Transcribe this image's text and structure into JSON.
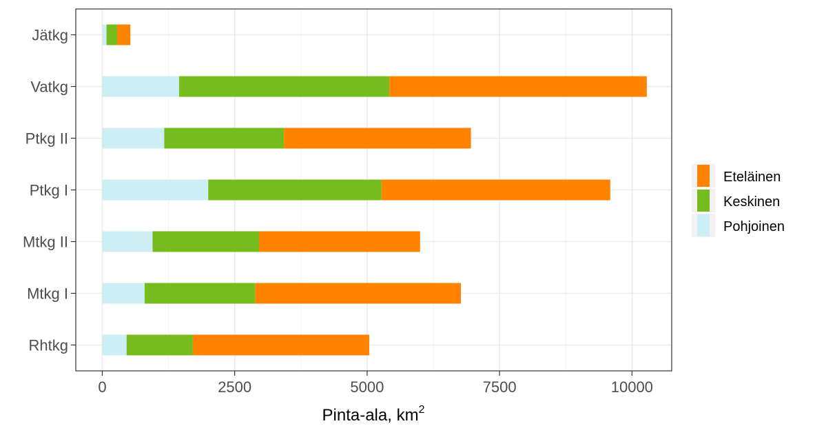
{
  "chart_data": {
    "type": "bar",
    "orientation": "horizontal",
    "stacked": true,
    "categories": [
      "Rhtkg",
      "Mtkg I",
      "Mtkg II",
      "Ptkg I",
      "Ptkg II",
      "Vatkg",
      "Jätkg"
    ],
    "series": [
      {
        "name": "Pohjoinen",
        "color": "#cdeef5",
        "values": [
          460,
          800,
          950,
          2000,
          1170,
          1450,
          80
        ]
      },
      {
        "name": "Keskinen",
        "color": "#77bc1f",
        "values": [
          1250,
          2090,
          2010,
          3270,
          2260,
          3970,
          200
        ]
      },
      {
        "name": "Eteläinen",
        "color": "#ff8200",
        "values": [
          3330,
          3880,
          3040,
          4320,
          3530,
          4860,
          250
        ]
      }
    ],
    "legend_order": [
      "Eteläinen",
      "Keskinen",
      "Pohjoinen"
    ],
    "xticks": [
      0,
      2500,
      5000,
      7500,
      10000
    ],
    "xtick_labels": [
      "0",
      "2500",
      "5000",
      "7500",
      "10000"
    ],
    "xlim": [
      -500,
      10750
    ],
    "xlabel": "Pinta-ala,  km",
    "xlabel_superscript": "2",
    "ylabel": "",
    "title": "",
    "grid": true,
    "legend_position": "right"
  }
}
